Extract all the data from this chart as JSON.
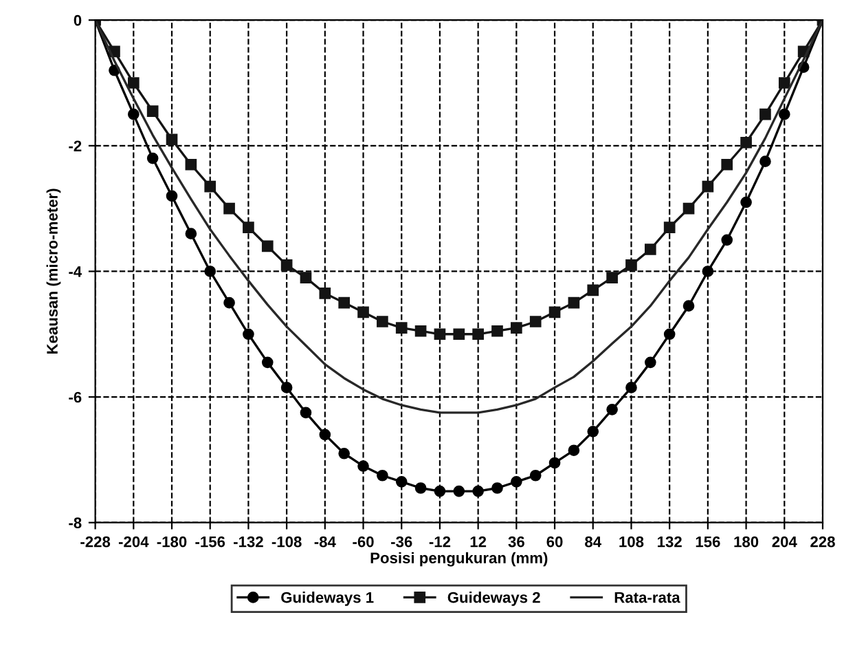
{
  "chart_data": {
    "type": "line",
    "xlabel": "Posisi pengukuran (mm)",
    "ylabel": "Keausan (micro-meter)",
    "x": [
      -228,
      -216,
      -204,
      -192,
      -180,
      -168,
      -156,
      -144,
      -132,
      -120,
      -108,
      -96,
      -84,
      -72,
      -60,
      -48,
      -36,
      -24,
      -12,
      0,
      12,
      24,
      36,
      48,
      60,
      72,
      84,
      96,
      108,
      120,
      132,
      144,
      156,
      168,
      180,
      192,
      204,
      216,
      228
    ],
    "series": [
      {
        "name": "Guideways 1",
        "color": "#000000",
        "marker": "circle",
        "values": [
          0,
          -0.8,
          -1.5,
          -2.2,
          -2.8,
          -3.4,
          -4.0,
          -4.5,
          -5.0,
          -5.45,
          -5.85,
          -6.25,
          -6.6,
          -6.9,
          -7.1,
          -7.25,
          -7.35,
          -7.45,
          -7.5,
          -7.5,
          -7.5,
          -7.45,
          -7.35,
          -7.25,
          -7.05,
          -6.85,
          -6.55,
          -6.2,
          -5.85,
          -5.45,
          -5.0,
          -4.55,
          -4.0,
          -3.5,
          -2.9,
          -2.25,
          -1.5,
          -0.75,
          0
        ]
      },
      {
        "name": "Guideways 2",
        "color": "#141414",
        "marker": "square",
        "values": [
          0,
          -0.5,
          -1.0,
          -1.45,
          -1.9,
          -2.3,
          -2.65,
          -3.0,
          -3.3,
          -3.6,
          -3.9,
          -4.1,
          -4.35,
          -4.5,
          -4.65,
          -4.8,
          -4.9,
          -4.95,
          -5.0,
          -5.0,
          -5.0,
          -4.95,
          -4.9,
          -4.8,
          -4.65,
          -4.5,
          -4.3,
          -4.1,
          -3.9,
          -3.65,
          -3.3,
          -3.0,
          -2.65,
          -2.3,
          -1.95,
          -1.5,
          -1.0,
          -0.5,
          0
        ]
      },
      {
        "name": "Rata-rata",
        "color": "#282828",
        "marker": "none",
        "values": [
          0,
          -0.65,
          -1.25,
          -1.83,
          -2.35,
          -2.85,
          -3.33,
          -3.75,
          -4.15,
          -4.53,
          -4.88,
          -5.18,
          -5.48,
          -5.7,
          -5.88,
          -6.03,
          -6.13,
          -6.2,
          -6.25,
          -6.25,
          -6.25,
          -6.2,
          -6.13,
          -6.03,
          -5.85,
          -5.68,
          -5.43,
          -5.15,
          -4.88,
          -4.55,
          -4.15,
          -3.78,
          -3.33,
          -2.9,
          -2.43,
          -1.88,
          -1.25,
          -0.63,
          0
        ]
      }
    ],
    "xlim": [
      -228,
      228
    ],
    "xticks": [
      -228,
      -204,
      -180,
      -156,
      -132,
      -108,
      -84,
      -60,
      -36,
      -12,
      12,
      36,
      60,
      84,
      108,
      132,
      156,
      180,
      204,
      228
    ],
    "ylim": [
      -8,
      0
    ],
    "yticks": [
      -8,
      -6,
      -4,
      -2,
      0
    ],
    "grid": true,
    "line_style": "solid",
    "legend": "bottom"
  }
}
